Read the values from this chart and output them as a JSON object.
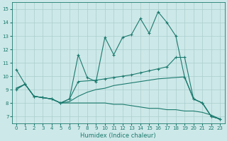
{
  "xlabel": "Humidex (Indice chaleur)",
  "xlim": [
    -0.5,
    23.5
  ],
  "ylim": [
    6.5,
    15.5
  ],
  "xticks": [
    0,
    1,
    2,
    3,
    4,
    5,
    6,
    7,
    8,
    9,
    10,
    11,
    12,
    13,
    14,
    15,
    16,
    17,
    18,
    19,
    20,
    21,
    22,
    23
  ],
  "yticks": [
    7,
    8,
    9,
    10,
    11,
    12,
    13,
    14,
    15
  ],
  "bg_color": "#cde8e8",
  "grid_color": "#aacece",
  "line_color": "#1a7a6e",
  "line1_x": [
    0,
    1,
    2,
    3,
    4,
    5,
    6,
    7,
    8,
    9,
    10,
    11,
    12,
    13,
    14,
    15,
    16,
    17,
    18,
    19,
    20,
    21,
    22,
    23
  ],
  "line1_y": [
    10.5,
    9.4,
    8.5,
    8.4,
    8.3,
    8.0,
    8.3,
    11.6,
    9.9,
    9.6,
    12.9,
    11.6,
    12.9,
    13.1,
    14.3,
    13.2,
    14.8,
    14.0,
    13.0,
    9.9,
    8.3,
    8.0,
    7.0,
    6.8
  ],
  "line2_x": [
    0,
    1,
    2,
    3,
    4,
    5,
    6,
    7,
    9,
    10,
    11,
    12,
    13,
    14,
    15,
    16,
    17,
    18,
    19,
    20,
    21,
    22,
    23
  ],
  "line2_y": [
    9.0,
    9.4,
    8.5,
    8.4,
    8.3,
    8.0,
    8.3,
    9.6,
    9.7,
    9.8,
    9.9,
    10.0,
    10.1,
    10.25,
    10.4,
    10.55,
    10.7,
    11.4,
    11.4,
    8.3,
    8.0,
    7.0,
    6.8
  ],
  "line3_x": [
    0,
    1,
    2,
    3,
    4,
    5,
    6,
    7,
    8,
    9,
    10,
    11,
    12,
    13,
    14,
    15,
    16,
    17,
    18,
    19,
    20,
    21,
    22,
    23
  ],
  "line3_y": [
    9.1,
    9.4,
    8.5,
    8.4,
    8.3,
    8.0,
    8.1,
    8.5,
    8.8,
    9.0,
    9.1,
    9.3,
    9.4,
    9.5,
    9.6,
    9.7,
    9.8,
    9.85,
    9.9,
    9.95,
    8.3,
    8.0,
    7.0,
    6.8
  ],
  "line4_x": [
    0,
    1,
    2,
    3,
    4,
    5,
    6,
    7,
    8,
    9,
    10,
    11,
    12,
    13,
    14,
    15,
    16,
    17,
    18,
    19,
    20,
    21,
    22,
    23
  ],
  "line4_y": [
    9.1,
    9.4,
    8.5,
    8.4,
    8.3,
    8.0,
    8.0,
    8.0,
    8.0,
    8.0,
    8.0,
    7.9,
    7.9,
    7.8,
    7.7,
    7.6,
    7.6,
    7.5,
    7.5,
    7.4,
    7.4,
    7.3,
    7.1,
    6.8
  ]
}
